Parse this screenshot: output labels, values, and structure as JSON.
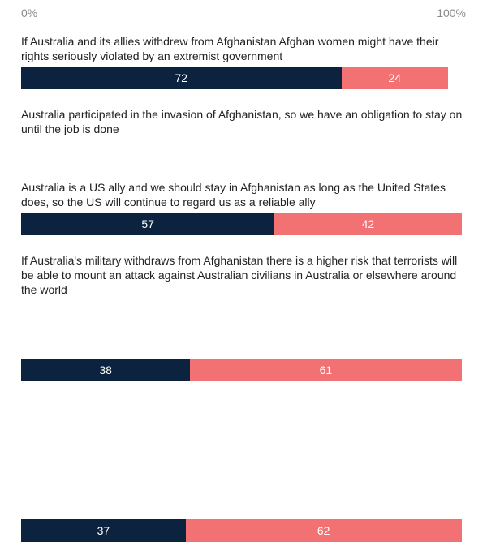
{
  "axis": {
    "min_label": "0%",
    "max_label": "100%"
  },
  "colors": {
    "agree": "#0c2340",
    "disagree": "#f27173"
  },
  "chart_data": {
    "type": "bar",
    "orientation": "horizontal",
    "stacked": true,
    "xlim": [
      0,
      100
    ],
    "categories": [
      "If Australia and its allies withdrew from Afghanistan Afghan women might have their rights seriously violated by an extremist government",
      "Australia participated in the invasion of Afghanistan, so we have an obligation to stay on until the job is done",
      "Australia is a US ally and we should stay in Afghanistan as long as the United States does, so the US will continue to regard us as a reliable ally",
      "If Australia's military withdraws from Afghanistan there is a higher risk that terrorists will be able to mount an attack against Australian civilians in Australia or elsewhere around the world"
    ],
    "series": [
      {
        "values": [
          72,
          57,
          38,
          37
        ]
      },
      {
        "values": [
          24,
          42,
          61,
          62
        ]
      }
    ]
  }
}
